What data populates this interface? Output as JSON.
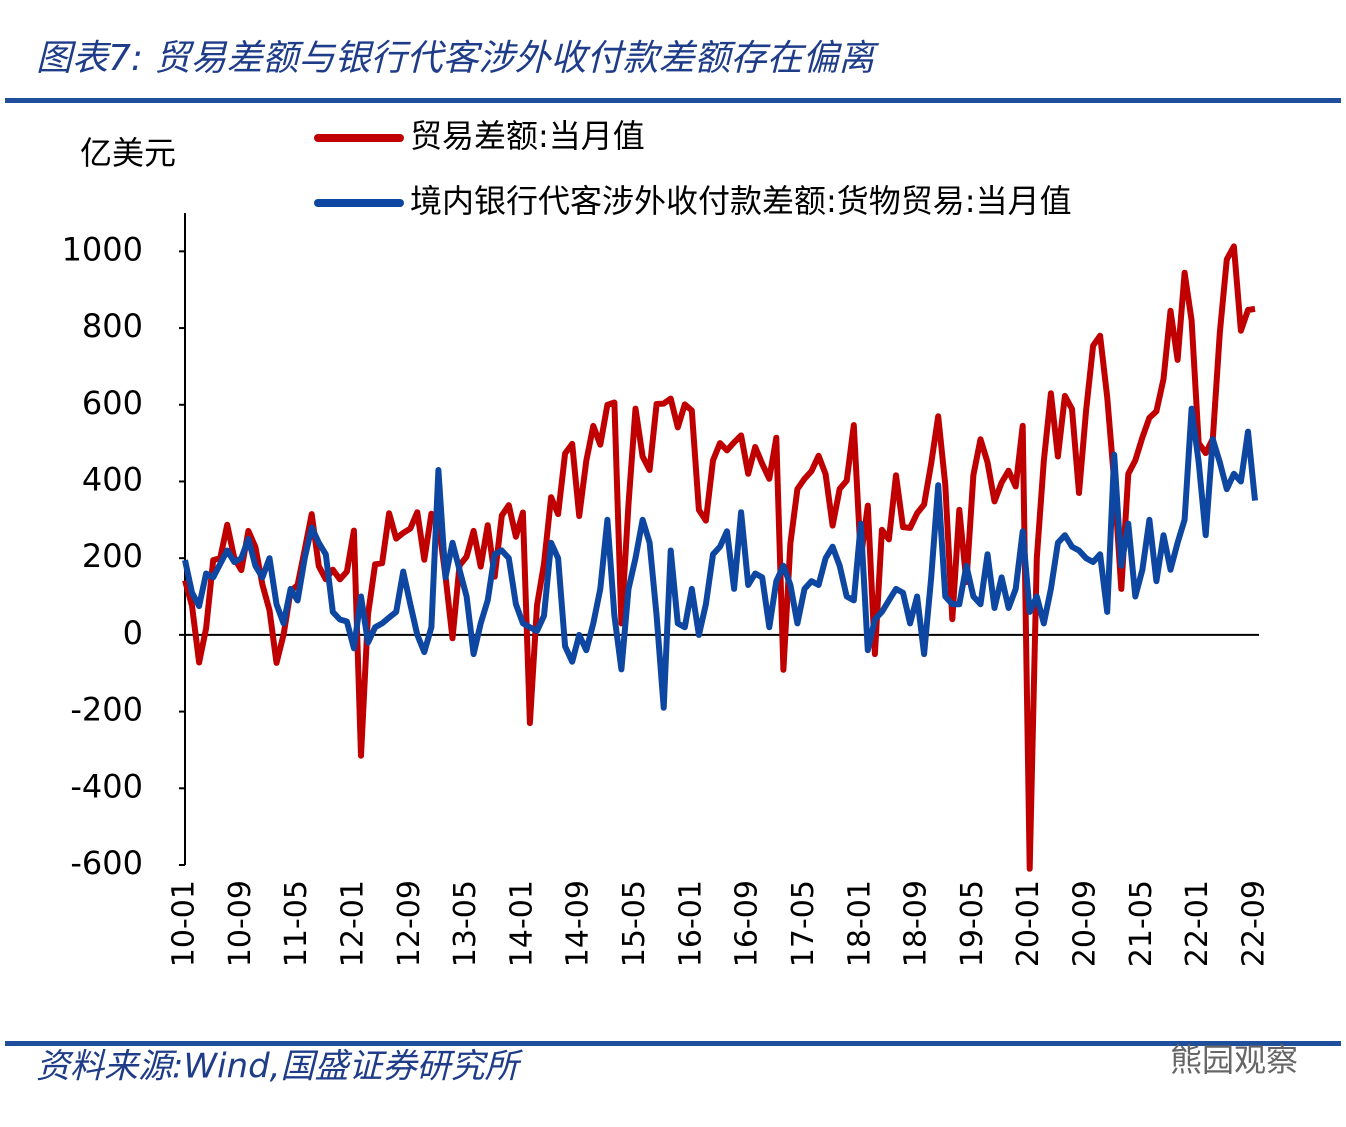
{
  "chart_data": {
    "type": "line",
    "title": "图表7: 贸易差额与银行代客涉外收付款差额存在偏离",
    "y_label": "亿美元",
    "source": "资料来源:Wind,国盛证券研究所",
    "watermark": "熊园观察",
    "categories": [
      "10-01",
      null,
      null,
      null,
      null,
      null,
      null,
      null,
      "10-09",
      null,
      null,
      null,
      null,
      null,
      null,
      null,
      "11-05",
      null,
      null,
      null,
      null,
      null,
      null,
      null,
      "12-01",
      null,
      null,
      null,
      null,
      null,
      null,
      null,
      "12-09",
      null,
      null,
      null,
      null,
      null,
      null,
      null,
      "13-05",
      null,
      null,
      null,
      null,
      null,
      null,
      null,
      "14-01",
      null,
      null,
      null,
      null,
      null,
      null,
      null,
      "14-09",
      null,
      null,
      null,
      null,
      null,
      null,
      null,
      "15-05",
      null,
      null,
      null,
      null,
      null,
      null,
      null,
      "16-01",
      null,
      null,
      null,
      null,
      null,
      null,
      null,
      "16-09",
      null,
      null,
      null,
      null,
      null,
      null,
      null,
      "17-05",
      null,
      null,
      null,
      null,
      null,
      null,
      null,
      "18-01",
      null,
      null,
      null,
      null,
      null,
      null,
      null,
      "18-09",
      null,
      null,
      null,
      null,
      null,
      null,
      null,
      "19-05",
      null,
      null,
      null,
      null,
      null,
      null,
      null,
      "20-01",
      null,
      null,
      null,
      null,
      null,
      null,
      null,
      "20-09",
      null,
      null,
      null,
      null,
      null,
      null,
      null,
      "21-05",
      null,
      null,
      null,
      null,
      null,
      null,
      null,
      "22-01",
      null,
      null,
      null,
      null,
      null,
      null,
      null,
      "22-09"
    ],
    "series": [
      {
        "name": "贸易差额:当月值",
        "color": "#c00000",
        "values": [
          142,
          76,
          -72,
          17,
          195,
          200,
          287,
          200,
          169,
          271,
          229,
          131,
          64,
          -73,
          1,
          114,
          130,
          222,
          315,
          179,
          145,
          170,
          145,
          165,
          272,
          -315,
          53,
          184,
          187,
          317,
          251,
          266,
          277,
          320,
          196,
          316,
          292,
          153,
          -9,
          181,
          204,
          271,
          178,
          286,
          152,
          311,
          338,
          256,
          319,
          -230,
          77,
          185,
          359,
          315,
          473,
          498,
          310,
          454,
          545,
          496,
          600,
          606,
          30,
          341,
          590,
          465,
          430,
          602,
          603,
          616,
          541,
          601,
          585,
          326,
          298,
          455,
          500,
          481,
          502,
          520,
          420,
          490,
          446,
          407,
          514,
          -91,
          239,
          380,
          407,
          427,
          467,
          419,
          285,
          381,
          402,
          547,
          200,
          337,
          -50,
          274,
          249,
          416,
          281,
          279,
          317,
          340,
          447,
          570,
          391,
          41,
          326,
          138,
          417,
          510,
          450,
          348,
          397,
          428,
          387,
          545,
          -610,
          200,
          453,
          630,
          465,
          623,
          589,
          370,
          585,
          754,
          780,
          620,
          400,
          120,
          420,
          455,
          515,
          566,
          583,
          667,
          845,
          717,
          944,
          820,
          500,
          474,
          511,
          787,
          979,
          1013,
          793,
          847,
          850
        ]
      },
      {
        "name": "境内银行代客涉外收付款差额:货物贸易:当月值",
        "color": "#0d47a1",
        "values": [
          195,
          110,
          75,
          160,
          150,
          185,
          220,
          190,
          200,
          250,
          180,
          150,
          200,
          80,
          30,
          120,
          90,
          200,
          280,
          240,
          210,
          60,
          40,
          35,
          -35,
          100,
          -20,
          20,
          30,
          45,
          60,
          165,
          80,
          0,
          -45,
          20,
          430,
          150,
          240,
          170,
          100,
          -50,
          30,
          90,
          210,
          220,
          200,
          80,
          30,
          20,
          10,
          50,
          240,
          200,
          -30,
          -70,
          0,
          -40,
          30,
          120,
          300,
          50,
          -90,
          120,
          200,
          300,
          240,
          50,
          -190,
          220,
          30,
          20,
          120,
          0,
          80,
          210,
          230,
          270,
          120,
          320,
          130,
          160,
          150,
          20,
          140,
          180,
          130,
          30,
          120,
          140,
          130,
          200,
          230,
          180,
          100,
          90,
          290,
          -40,
          40,
          60,
          90,
          120,
          110,
          30,
          100,
          -50,
          150,
          390,
          100,
          80,
          80,
          180,
          100,
          80,
          210,
          70,
          150,
          70,
          120,
          270,
          60,
          100,
          30,
          120,
          240,
          260,
          230,
          220,
          200,
          190,
          210,
          60,
          470,
          180,
          290,
          100,
          170,
          300,
          140,
          260,
          170,
          240,
          300,
          590,
          450,
          260,
          510,
          450,
          380,
          420,
          400,
          530,
          350
        ]
      }
    ],
    "ylim": [
      -600,
      1100
    ],
    "yticks": [
      -600,
      -400,
      -200,
      0,
      200,
      400,
      600,
      800,
      1000
    ]
  }
}
